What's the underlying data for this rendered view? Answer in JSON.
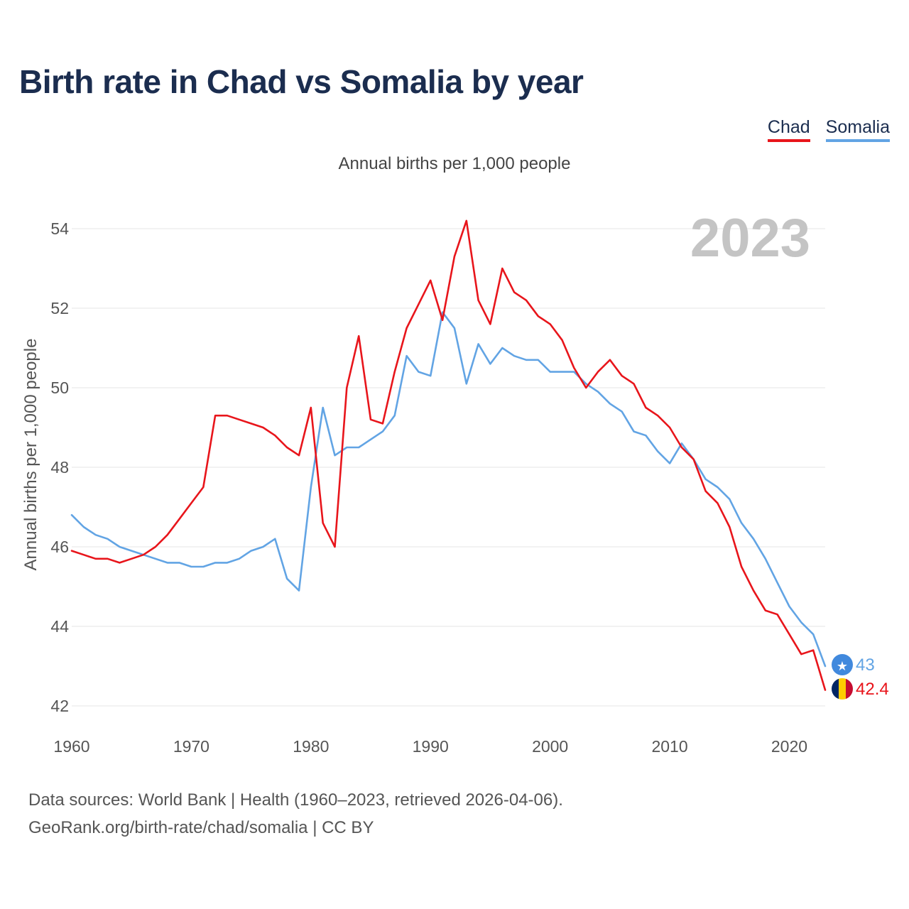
{
  "title": "Birth rate in Chad vs Somalia by year",
  "legend": {
    "chad": "Chad",
    "somalia": "Somalia"
  },
  "subtitle": "Annual births per 1,000 people",
  "year_label": "2023",
  "footer": {
    "line1": "Data sources: World Bank | Health (1960–2023, retrieved 2026-04-06).",
    "line2": "GeoRank.org/birth-rate/chad/somalia | CC BY"
  },
  "colors": {
    "chad": "#e8151b",
    "somalia": "#62a4e4",
    "title": "#1b2d4f",
    "grid": "#e6e6e6"
  },
  "chart_data": {
    "type": "line",
    "title": "Birth rate in Chad vs Somalia by year",
    "xlabel": "",
    "ylabel": "Annual births per 1,000 people",
    "xlim": [
      1960,
      2023
    ],
    "ylim": [
      42,
      54
    ],
    "x_ticks": [
      1960,
      1970,
      1980,
      1990,
      2000,
      2010,
      2020
    ],
    "y_ticks": [
      42,
      44,
      46,
      48,
      50,
      52,
      54
    ],
    "x": [
      1960,
      1961,
      1962,
      1963,
      1964,
      1965,
      1966,
      1967,
      1968,
      1969,
      1970,
      1971,
      1972,
      1973,
      1974,
      1975,
      1976,
      1977,
      1978,
      1979,
      1980,
      1981,
      1982,
      1983,
      1984,
      1985,
      1986,
      1987,
      1988,
      1989,
      1990,
      1991,
      1992,
      1993,
      1994,
      1995,
      1996,
      1997,
      1998,
      1999,
      2000,
      2001,
      2002,
      2003,
      2004,
      2005,
      2006,
      2007,
      2008,
      2009,
      2010,
      2011,
      2012,
      2013,
      2014,
      2015,
      2016,
      2017,
      2018,
      2019,
      2020,
      2021,
      2022,
      2023
    ],
    "series": [
      {
        "name": "Chad",
        "end_label": "42.4",
        "values": [
          45.9,
          45.8,
          45.7,
          45.7,
          45.6,
          45.7,
          45.8,
          46.0,
          46.3,
          46.7,
          47.1,
          47.5,
          49.3,
          49.3,
          49.2,
          49.1,
          49.0,
          48.8,
          48.5,
          48.3,
          49.5,
          46.6,
          46.0,
          50.0,
          51.3,
          49.2,
          49.1,
          50.4,
          51.5,
          52.1,
          52.7,
          51.7,
          53.3,
          54.2,
          52.2,
          51.6,
          53.0,
          52.4,
          52.2,
          51.8,
          51.6,
          51.2,
          50.5,
          50.0,
          50.4,
          50.7,
          50.3,
          50.1,
          49.5,
          49.3,
          49.0,
          48.5,
          48.2,
          47.4,
          47.1,
          46.5,
          45.5,
          44.9,
          44.4,
          44.3,
          43.8,
          43.3,
          43.4,
          42.4
        ]
      },
      {
        "name": "Somalia",
        "end_label": "43",
        "values": [
          46.8,
          46.5,
          46.3,
          46.2,
          46.0,
          45.9,
          45.8,
          45.7,
          45.6,
          45.6,
          45.5,
          45.5,
          45.6,
          45.6,
          45.7,
          45.9,
          46.0,
          46.2,
          45.2,
          44.9,
          47.5,
          49.5,
          48.3,
          48.5,
          48.5,
          48.7,
          48.9,
          49.3,
          50.8,
          50.4,
          50.3,
          51.9,
          51.5,
          50.1,
          51.1,
          50.6,
          51.0,
          50.8,
          50.7,
          50.7,
          50.4,
          50.4,
          50.4,
          50.1,
          49.9,
          49.6,
          49.4,
          48.9,
          48.8,
          48.4,
          48.1,
          48.6,
          48.2,
          47.7,
          47.5,
          47.2,
          46.6,
          46.2,
          45.7,
          45.1,
          44.5,
          44.1,
          43.8,
          43.0
        ]
      }
    ]
  }
}
